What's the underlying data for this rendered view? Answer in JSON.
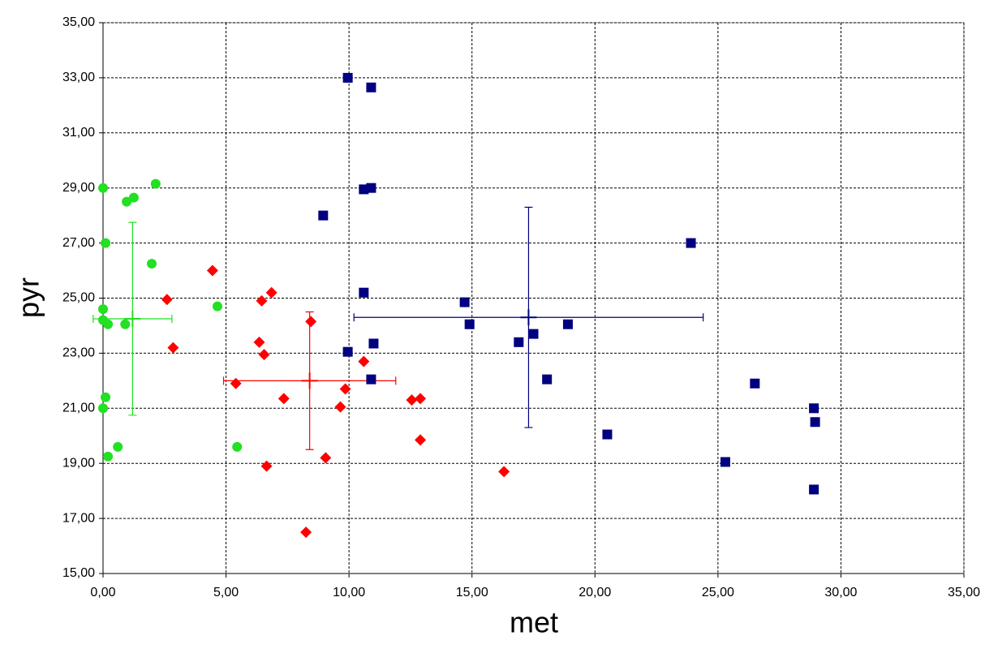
{
  "chart_data": {
    "type": "scatter",
    "x_label": "met",
    "y_label": "pyr",
    "xlim": [
      0,
      35
    ],
    "ylim": [
      15,
      35
    ],
    "xticks": [
      {
        "value": 0,
        "label": "0,00"
      },
      {
        "value": 5,
        "label": "5,00"
      },
      {
        "value": 10,
        "label": "10,00"
      },
      {
        "value": 15,
        "label": "15,00"
      },
      {
        "value": 20,
        "label": "20,00"
      },
      {
        "value": 25,
        "label": "25,00"
      },
      {
        "value": 30,
        "label": "30,00"
      },
      {
        "value": 35,
        "label": "35,00"
      }
    ],
    "yticks": [
      {
        "value": 15,
        "label": "15,00"
      },
      {
        "value": 17,
        "label": "17,00"
      },
      {
        "value": 19,
        "label": "19,00"
      },
      {
        "value": 21,
        "label": "21,00"
      },
      {
        "value": 23,
        "label": "23,00"
      },
      {
        "value": 25,
        "label": "25,00"
      },
      {
        "value": 27,
        "label": "27,00"
      },
      {
        "value": 29,
        "label": "29,00"
      },
      {
        "value": 31,
        "label": "31,00"
      },
      {
        "value": 33,
        "label": "33,00"
      },
      {
        "value": 35,
        "label": "35,00"
      }
    ],
    "grid": true,
    "series": [
      {
        "color": "#22e022",
        "marker": "circle",
        "x": [
          0,
          0.1,
          0.96,
          1.25,
          2.14,
          1.98,
          4.65,
          0,
          0,
          0.2,
          0.9,
          0.1,
          0,
          0.6,
          0.2,
          5.45
        ],
        "values": [
          29.0,
          27.0,
          28.5,
          28.65,
          29.15,
          26.25,
          24.7,
          24.6,
          24.2,
          24.05,
          24.05,
          21.4,
          21.0,
          19.6,
          19.25,
          19.6
        ],
        "mean": {
          "x": 1.2,
          "y": 24.25,
          "x_err": 1.6,
          "y_err": 3.5
        }
      },
      {
        "color": "#ff0000",
        "marker": "diamond",
        "x": [
          2.6,
          4.45,
          2.85,
          6.45,
          6.85,
          6.35,
          6.55,
          8.45,
          10.6,
          5.4,
          7.35,
          9.85,
          9.65,
          12.55,
          12.9,
          12.9,
          9.05,
          6.65,
          16.3,
          8.25
        ],
        "values": [
          24.95,
          26.0,
          23.2,
          24.9,
          25.2,
          23.4,
          22.95,
          24.15,
          22.7,
          21.9,
          21.35,
          21.7,
          21.05,
          21.3,
          21.35,
          19.85,
          19.2,
          18.9,
          18.7,
          16.5
        ],
        "mean": {
          "x": 8.4,
          "y": 22.0,
          "x_err": 3.5,
          "y_err": 2.5
        }
      },
      {
        "color": "#000080",
        "marker": "square",
        "x": [
          9.95,
          10.9,
          10.6,
          10.9,
          8.95,
          23.9,
          10.6,
          14.7,
          14.9,
          18.9,
          17.5,
          16.9,
          11.0,
          9.95,
          10.9,
          18.05,
          26.5,
          28.9,
          28.95,
          20.5,
          25.3,
          28.9
        ],
        "values": [
          33.0,
          32.65,
          28.95,
          29.0,
          28.0,
          27.0,
          25.2,
          24.85,
          24.05,
          24.05,
          23.7,
          23.4,
          23.35,
          23.05,
          22.05,
          22.05,
          21.9,
          21.0,
          20.5,
          20.05,
          19.05,
          18.05
        ],
        "mean": {
          "x": 17.3,
          "y": 24.3,
          "x_err": 7.1,
          "y_err": 4.0
        }
      }
    ]
  }
}
